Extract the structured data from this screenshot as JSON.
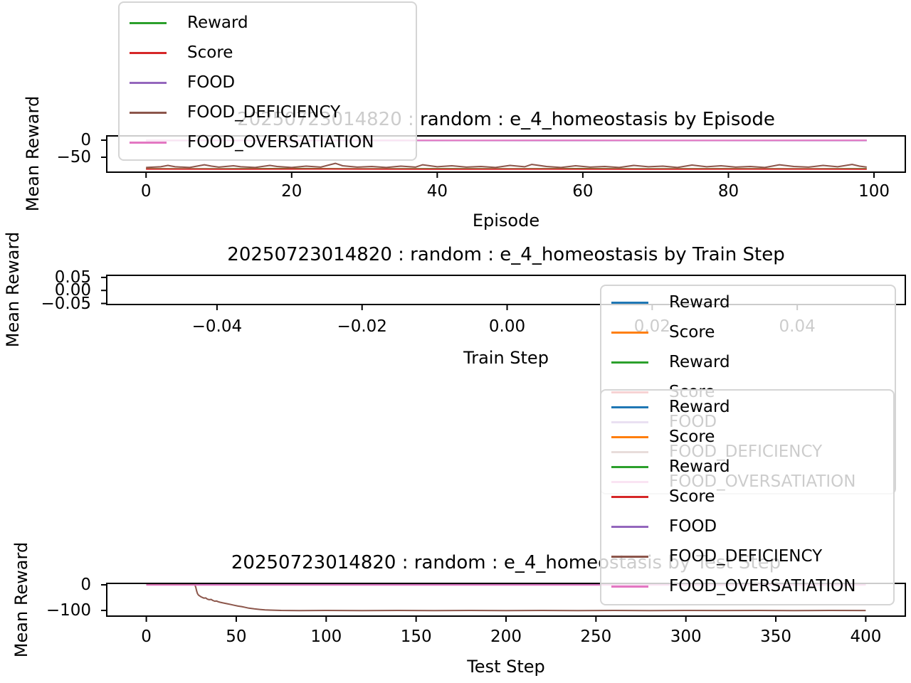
{
  "chart_data": [
    {
      "type": "line",
      "title": "20250723014820 : random : e_4_homeostasis by Episode",
      "xlabel": "Episode",
      "ylabel": "Mean Reward",
      "xlim": [
        -5.4,
        104.3
      ],
      "ylim": [
        -93.75,
        12.5
      ],
      "xticks": [
        {
          "v": 0,
          "l": "0"
        },
        {
          "v": 20,
          "l": "20"
        },
        {
          "v": 40,
          "l": "40"
        },
        {
          "v": 60,
          "l": "60"
        },
        {
          "v": 80,
          "l": "80"
        },
        {
          "v": 100,
          "l": "100"
        }
      ],
      "yticks": [
        {
          "v": 0,
          "l": "0"
        },
        {
          "v": -50,
          "l": "−50"
        }
      ],
      "legend_position": "upper-left",
      "series": [
        {
          "name": "Reward",
          "color": "#2ca02c",
          "points": [
            [
              0,
              -83.5
            ],
            [
              10,
              -84
            ],
            [
              20,
              -83.2
            ],
            [
              30,
              -84
            ],
            [
              40,
              -83.5
            ],
            [
              50,
              -84
            ],
            [
              60,
              -83.3
            ],
            [
              70,
              -84
            ],
            [
              80,
              -83.5
            ],
            [
              90,
              -84
            ],
            [
              99,
              -83.6
            ]
          ]
        },
        {
          "name": "Score",
          "color": "#d62728",
          "points": [
            [
              0,
              -84.6
            ],
            [
              12,
              -85
            ],
            [
              25,
              -84.4
            ],
            [
              40,
              -85
            ],
            [
              55,
              -84.5
            ],
            [
              70,
              -85
            ],
            [
              85,
              -84.5
            ],
            [
              99,
              -84.8
            ]
          ]
        },
        {
          "name": "FOOD",
          "color": "#9467bd",
          "points": [
            [
              0,
              -1
            ],
            [
              99,
              -1
            ]
          ]
        },
        {
          "name": "FOOD_DEFICIENCY",
          "color": "#8c564b",
          "points": [
            [
              0,
              -80
            ],
            [
              2,
              -78
            ],
            [
              3,
              -74
            ],
            [
              4,
              -78
            ],
            [
              6,
              -80
            ],
            [
              8,
              -72
            ],
            [
              9,
              -76
            ],
            [
              10,
              -79
            ],
            [
              12,
              -75
            ],
            [
              13,
              -78
            ],
            [
              15,
              -80
            ],
            [
              17,
              -74
            ],
            [
              18,
              -77
            ],
            [
              20,
              -80
            ],
            [
              22,
              -76
            ],
            [
              24,
              -79
            ],
            [
              26,
              -68
            ],
            [
              27,
              -75
            ],
            [
              29,
              -79
            ],
            [
              31,
              -77
            ],
            [
              33,
              -80
            ],
            [
              35,
              -76
            ],
            [
              37,
              -79
            ],
            [
              38,
              -72
            ],
            [
              40,
              -78
            ],
            [
              42,
              -75
            ],
            [
              44,
              -79
            ],
            [
              46,
              -77
            ],
            [
              48,
              -80
            ],
            [
              50,
              -74
            ],
            [
              52,
              -78
            ],
            [
              53,
              -71
            ],
            [
              55,
              -77
            ],
            [
              57,
              -80
            ],
            [
              59,
              -75
            ],
            [
              61,
              -79
            ],
            [
              63,
              -77
            ],
            [
              65,
              -80
            ],
            [
              67,
              -74
            ],
            [
              69,
              -78
            ],
            [
              71,
              -76
            ],
            [
              73,
              -80
            ],
            [
              75,
              -73
            ],
            [
              77,
              -78
            ],
            [
              79,
              -75
            ],
            [
              81,
              -79
            ],
            [
              83,
              -77
            ],
            [
              85,
              -80
            ],
            [
              87,
              -72
            ],
            [
              89,
              -77
            ],
            [
              91,
              -79
            ],
            [
              93,
              -74
            ],
            [
              95,
              -78
            ],
            [
              97,
              -71
            ],
            [
              98,
              -76
            ],
            [
              99,
              -79
            ]
          ]
        },
        {
          "name": "FOOD_OVERSATIATION",
          "color": "#e377c2",
          "points": [
            [
              0,
              -0.3
            ],
            [
              15,
              -0.8
            ],
            [
              30,
              -0.2
            ],
            [
              45,
              -0.7
            ],
            [
              60,
              -0.3
            ],
            [
              75,
              -0.6
            ],
            [
              99,
              -0.3
            ]
          ]
        }
      ],
      "legend": {
        "entries": [
          {
            "label": "Reward",
            "color": "#2ca02c"
          },
          {
            "label": "Score",
            "color": "#d62728"
          },
          {
            "label": "FOOD",
            "color": "#9467bd"
          },
          {
            "label": "FOOD_DEFICIENCY",
            "color": "#8c564b"
          },
          {
            "label": "FOOD_OVERSATIATION",
            "color": "#e377c2"
          }
        ]
      }
    },
    {
      "type": "line",
      "title": "20250723014820 : random : e_4_homeostasis by Train Step",
      "xlabel": "Train Step",
      "ylabel": "Mean Reward",
      "xlim": [
        -0.0552,
        0.0549
      ],
      "ylim": [
        -0.054,
        0.058
      ],
      "xticks": [
        {
          "v": -0.04,
          "l": "−0.04"
        },
        {
          "v": -0.02,
          "l": "−0.02"
        },
        {
          "v": 0,
          "l": "0.00"
        },
        {
          "v": 0.02,
          "l": "0.02"
        },
        {
          "v": 0.04,
          "l": "0.04"
        }
      ],
      "yticks": [
        {
          "v": 0.05,
          "l": "0.05"
        },
        {
          "v": 0,
          "l": "0.00"
        },
        {
          "v": -0.05,
          "l": "−0.05"
        }
      ],
      "legend_position": "upper-right",
      "series": [],
      "legend": {
        "entries": [
          {
            "label": "Reward",
            "color": "#1f77b4"
          },
          {
            "label": "Score",
            "color": "#ff7f0e"
          },
          {
            "label": "Reward",
            "color": "#2ca02c"
          },
          {
            "label": "Score",
            "color": "#d62728"
          },
          {
            "label": "FOOD",
            "color": "#9467bd"
          },
          {
            "label": "FOOD_DEFICIENCY",
            "color": "#8c564b"
          },
          {
            "label": "FOOD_OVERSATIATION",
            "color": "#e377c2"
          }
        ]
      }
    },
    {
      "type": "line",
      "title": "20250723014820 : random : e_4_homeostasis by Test Step",
      "xlabel": "Test Step",
      "ylabel": "Mean Reward",
      "xlim": [
        -22,
        422
      ],
      "ylim": [
        -122.2,
        5.55
      ],
      "xticks": [
        {
          "v": 0,
          "l": "0"
        },
        {
          "v": 50,
          "l": "50"
        },
        {
          "v": 100,
          "l": "100"
        },
        {
          "v": 150,
          "l": "150"
        },
        {
          "v": 200,
          "l": "200"
        },
        {
          "v": 250,
          "l": "250"
        },
        {
          "v": 300,
          "l": "300"
        },
        {
          "v": 350,
          "l": "350"
        },
        {
          "v": 400,
          "l": "400"
        }
      ],
      "yticks": [
        {
          "v": 0,
          "l": "0"
        },
        {
          "v": -100,
          "l": "−100"
        }
      ],
      "legend_position": "upper-right",
      "series": [
        {
          "name": "Reward",
          "color": "#1f77b4",
          "points": [
            [
              0,
              1.6
            ],
            [
              400,
              1.6
            ]
          ]
        },
        {
          "name": "Score",
          "color": "#ff7f0e",
          "points": [
            [
              0,
              1.2
            ],
            [
              400,
              1.2
            ]
          ]
        },
        {
          "name": "Reward",
          "color": "#2ca02c",
          "points": [
            [
              0,
              0.8
            ],
            [
              400,
              0.8
            ]
          ]
        },
        {
          "name": "Score",
          "color": "#d62728",
          "points": [
            [
              0,
              0.4
            ],
            [
              400,
              0.4
            ]
          ]
        },
        {
          "name": "FOOD",
          "color": "#9467bd",
          "points": [
            [
              0,
              0
            ],
            [
              400,
              0
            ]
          ]
        },
        {
          "name": "FOOD_DEFICIENCY",
          "color": "#8c564b",
          "points": [
            [
              0,
              0.6
            ],
            [
              4,
              0.4
            ],
            [
              8,
              0.6
            ],
            [
              12,
              0.3
            ],
            [
              16,
              0.5
            ],
            [
              20,
              0.3
            ],
            [
              24,
              0.4
            ],
            [
              27,
              0.2
            ],
            [
              27.5,
              -10
            ],
            [
              28,
              -25
            ],
            [
              28.5,
              -35
            ],
            [
              29,
              -40
            ],
            [
              30,
              -45
            ],
            [
              31,
              -49
            ],
            [
              32,
              -52
            ],
            [
              33,
              -51
            ],
            [
              34,
              -56
            ],
            [
              35,
              -58
            ],
            [
              36,
              -57
            ],
            [
              37,
              -61
            ],
            [
              38,
              -64
            ],
            [
              39,
              -63
            ],
            [
              40,
              -66
            ],
            [
              41,
              -68
            ],
            [
              43,
              -71
            ],
            [
              45,
              -74
            ],
            [
              47,
              -77
            ],
            [
              49,
              -80
            ],
            [
              51,
              -83
            ],
            [
              53,
              -85
            ],
            [
              55,
              -88
            ],
            [
              57,
              -91
            ],
            [
              60,
              -94
            ],
            [
              63,
              -96
            ],
            [
              66,
              -98
            ],
            [
              70,
              -99
            ],
            [
              75,
              -100
            ],
            [
              85,
              -100.5
            ],
            [
              100,
              -100
            ],
            [
              120,
              -100.6
            ],
            [
              140,
              -100
            ],
            [
              160,
              -100.4
            ],
            [
              180,
              -100
            ],
            [
              200,
              -100.5
            ],
            [
              220,
              -100
            ],
            [
              240,
              -100.4
            ],
            [
              260,
              -100
            ],
            [
              280,
              -100.5
            ],
            [
              300,
              -100
            ],
            [
              320,
              -100.3
            ],
            [
              340,
              -100
            ],
            [
              360,
              -100.4
            ],
            [
              380,
              -100
            ],
            [
              400,
              -100.2
            ]
          ]
        },
        {
          "name": "FOOD_OVERSATIATION",
          "color": "#e377c2",
          "points": [
            [
              0,
              -0.5
            ],
            [
              400,
              -0.5
            ]
          ]
        }
      ],
      "legend": {
        "entries": [
          {
            "label": "Reward",
            "color": "#1f77b4"
          },
          {
            "label": "Score",
            "color": "#ff7f0e"
          },
          {
            "label": "Reward",
            "color": "#2ca02c"
          },
          {
            "label": "Score",
            "color": "#d62728"
          },
          {
            "label": "FOOD",
            "color": "#9467bd"
          },
          {
            "label": "FOOD_DEFICIENCY",
            "color": "#8c564b"
          },
          {
            "label": "FOOD_OVERSATIATION",
            "color": "#e377c2"
          }
        ]
      }
    }
  ],
  "colors": {
    "axis": "#000000",
    "legend_border": "#d5d5d5",
    "legend_background": "rgba(255,255,255,0.8)"
  }
}
